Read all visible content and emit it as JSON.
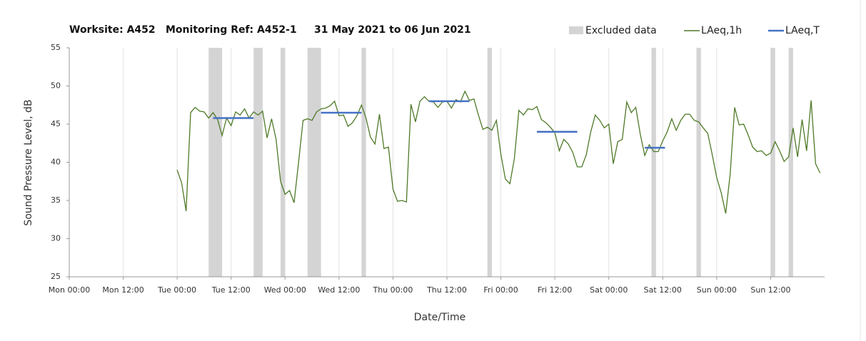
{
  "chart_data": {
    "type": "line",
    "title": [
      "Worksite: A452",
      "Monitoring Ref: A452-1",
      "31 May 2021 to 06 Jun 2021"
    ],
    "xlabel": "Date/Time",
    "ylabel": "Sound Pressure Level, dB",
    "xlim": [
      0,
      168
    ],
    "xticks": [
      {
        "value": 0,
        "label": "Mon 00:00"
      },
      {
        "value": 12,
        "label": "Mon 12:00"
      },
      {
        "value": 24,
        "label": "Tue 00:00"
      },
      {
        "value": 36,
        "label": "Tue 12:00"
      },
      {
        "value": 48,
        "label": "Wed 00:00"
      },
      {
        "value": 60,
        "label": "Wed 12:00"
      },
      {
        "value": 72,
        "label": "Thu 00:00"
      },
      {
        "value": 84,
        "label": "Thu 12:00"
      },
      {
        "value": 96,
        "label": "Fri 00:00"
      },
      {
        "value": 108,
        "label": "Fri 12:00"
      },
      {
        "value": 120,
        "label": "Sat 00:00"
      },
      {
        "value": 132,
        "label": "Sat 12:00"
      },
      {
        "value": 144,
        "label": "Sun 00:00"
      },
      {
        "value": 156,
        "label": "Sun 12:00"
      }
    ],
    "ylim": [
      25,
      55
    ],
    "yticks": [
      25,
      30,
      35,
      40,
      45,
      50,
      55
    ],
    "grid": true,
    "excluded": {
      "name": "Excluded data",
      "color": "#d4d4d4",
      "ranges": [
        [
          31,
          34
        ],
        [
          41,
          43
        ],
        [
          47,
          48
        ],
        [
          53,
          56
        ],
        [
          65,
          66
        ],
        [
          93,
          94
        ],
        [
          129.5,
          130.5
        ],
        [
          139.5,
          140.5
        ],
        [
          156,
          157
        ],
        [
          160,
          161
        ]
      ]
    },
    "series": [
      {
        "name": "LAeq,1h",
        "color": "#4f7a28",
        "x": [
          24,
          25,
          26,
          27,
          28,
          29,
          30,
          31,
          32,
          33,
          34,
          35,
          36,
          37,
          38,
          39,
          40,
          41,
          42,
          43,
          44,
          45,
          46,
          47,
          48,
          49,
          50,
          51,
          52,
          53,
          54,
          55,
          56,
          57,
          58,
          59,
          60,
          61,
          62,
          63,
          64,
          65,
          66,
          67,
          68,
          69,
          70,
          71,
          72,
          73,
          74,
          75,
          76,
          77,
          78,
          79,
          80,
          81,
          82,
          83,
          84,
          85,
          86,
          87,
          88,
          89,
          90,
          91,
          92,
          93,
          94,
          95,
          96,
          97,
          98,
          99,
          100,
          101,
          102,
          103,
          104,
          105,
          106,
          107,
          108,
          109,
          110,
          111,
          112,
          113,
          114,
          115,
          116,
          117,
          118,
          119,
          120,
          121,
          122,
          123,
          124,
          125,
          126,
          127,
          128,
          129,
          130,
          131,
          132,
          133,
          134,
          135,
          136,
          137,
          138,
          139,
          140,
          141,
          142,
          143,
          144,
          145,
          146,
          147,
          148,
          149,
          150,
          151,
          152,
          153,
          154,
          155,
          156,
          157,
          158,
          159,
          160,
          161,
          162,
          163,
          164,
          165,
          166,
          167
        ],
        "values": [
          39,
          37.3,
          33.6,
          46.5,
          47.2,
          46.7,
          46.6,
          45.8,
          46.5,
          45.6,
          43.5,
          45.8,
          44.8,
          46.6,
          46.2,
          47,
          45.8,
          46.6,
          46.2,
          46.7,
          43.2,
          45.7,
          43,
          37.5,
          35.8,
          36.3,
          34.7,
          40,
          45.5,
          45.7,
          45.5,
          46.6,
          47,
          47.1,
          47.4,
          48,
          46.1,
          46.2,
          44.7,
          45.2,
          46.1,
          47.5,
          45.8,
          43.3,
          42.4,
          46.3,
          41.8,
          42,
          36.5,
          34.9,
          35,
          34.8,
          47.6,
          45.3,
          48,
          48.6,
          48,
          47.9,
          47.2,
          47.9,
          48,
          47.1,
          48.2,
          47.9,
          49.3,
          48.1,
          48.3,
          46.2,
          44.3,
          44.6,
          44.2,
          45.5,
          41,
          37.8,
          37.2,
          40.5,
          46.8,
          46.2,
          47,
          46.9,
          47.3,
          45.6,
          45.2,
          44.6,
          43.9,
          41.5,
          43,
          42.4,
          41.3,
          39.4,
          39.4,
          41,
          44,
          46.2,
          45.5,
          44.5,
          45,
          39.8,
          42.7,
          43,
          47.9,
          46.5,
          47.2,
          43.7,
          40.9,
          42.3,
          41.4,
          41.4,
          42.8,
          44,
          45.7,
          44.2,
          45.5,
          46.3,
          46.3,
          45.5,
          45.3,
          44.5,
          43.8,
          41,
          38,
          36,
          33.3,
          38.5,
          47.2,
          44.9,
          45,
          43.6,
          42,
          41.4,
          41.5,
          40.9,
          41.2,
          42.7,
          41.5,
          40.1,
          40.7,
          44.5,
          40.7,
          45.6,
          41.5,
          48.1,
          39.8,
          38.6
        ]
      }
    ],
    "periods": {
      "name": "LAeq,T",
      "color": "#4472c4",
      "segments": [
        {
          "x": [
            32,
            41
          ],
          "value": 45.8
        },
        {
          "x": [
            56,
            65
          ],
          "value": 46.5
        },
        {
          "x": [
            80,
            89
          ],
          "value": 48
        },
        {
          "x": [
            104,
            113
          ],
          "value": 44
        },
        {
          "x": [
            128,
            132.5
          ],
          "value": 41.9
        }
      ]
    }
  }
}
